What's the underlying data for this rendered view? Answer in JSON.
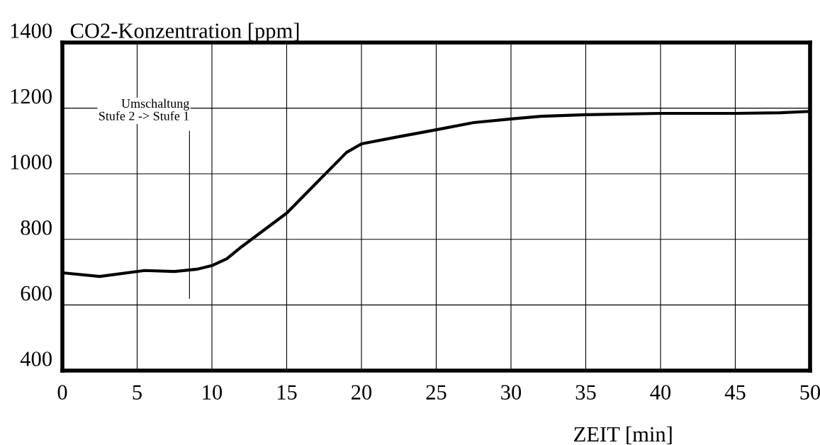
{
  "chart_data": {
    "type": "line",
    "ylabel": "CO2-Konzentration [ppm]",
    "xlabel": "ZEIT [min]",
    "x": [
      0,
      2.5,
      5.5,
      7.5,
      9,
      10,
      11,
      12,
      15,
      19,
      20,
      22.5,
      25,
      27.5,
      30,
      32,
      35,
      40,
      45,
      48,
      50
    ],
    "series": [
      {
        "color": "#000000",
        "values": [
          698,
          687,
          705,
          702,
          709,
          720,
          741,
          778,
          880,
          1065,
          1091,
          1113,
          1134,
          1156,
          1167,
          1175,
          1180,
          1184,
          1184,
          1186,
          1190
        ]
      }
    ],
    "xlim": [
      0,
      50
    ],
    "xticks": [
      0,
      5,
      10,
      15,
      20,
      25,
      30,
      35,
      40,
      45,
      50
    ],
    "ylim": [
      400,
      1400
    ],
    "yticks": [
      400,
      600,
      800,
      1000,
      1200,
      1400
    ],
    "grid": true,
    "marker": "none",
    "line_style": "solid",
    "legend": false,
    "ref_lines": [
      {
        "axis": "x",
        "value": 8.5,
        "label": "Umschaltung\nStufe 2 -> Stufe 1",
        "color": "#000000",
        "line_style": "solid"
      }
    ]
  }
}
